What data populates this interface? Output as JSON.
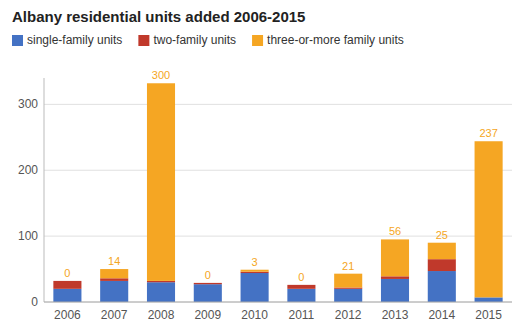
{
  "chart_data": {
    "type": "bar",
    "title": "Albany residential units added 2006-2015",
    "categories": [
      "2006",
      "2007",
      "2008",
      "2009",
      "2010",
      "2011",
      "2012",
      "2013",
      "2014",
      "2015"
    ],
    "series": [
      {
        "name": "single-family units",
        "color": "#4472c4",
        "values": [
          20,
          32,
          30,
          27,
          44,
          20,
          20,
          35,
          47,
          7
        ]
      },
      {
        "name": "two-family units",
        "color": "#c0392b",
        "values": [
          12,
          4,
          2,
          2,
          2,
          6,
          2,
          4,
          18,
          0
        ]
      },
      {
        "name": "three-or-more family units",
        "color": "#f5a623",
        "values": [
          0,
          14,
          300,
          0,
          3,
          0,
          21,
          56,
          25,
          237
        ],
        "data_labels": true
      }
    ],
    "stacked": true,
    "ylim": [
      0,
      340
    ],
    "yticks": [
      0,
      100,
      200,
      300
    ],
    "grid": true,
    "legend": "upper left"
  }
}
